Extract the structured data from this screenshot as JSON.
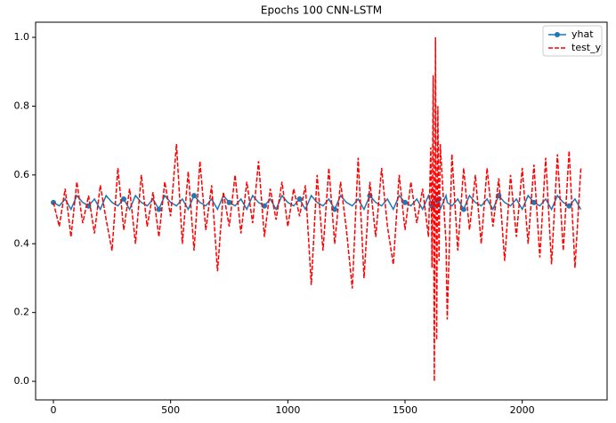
{
  "chart_data": {
    "type": "line",
    "title": "Epochs 100 CNN-LSTM",
    "x": [
      0,
      25,
      50,
      75,
      100,
      125,
      150,
      175,
      200,
      225,
      250,
      275,
      300,
      325,
      350,
      375,
      400,
      425,
      450,
      475,
      500,
      525,
      550,
      575,
      600,
      625,
      650,
      675,
      700,
      725,
      750,
      775,
      800,
      825,
      850,
      875,
      900,
      925,
      950,
      975,
      1000,
      1025,
      1050,
      1075,
      1100,
      1125,
      1150,
      1175,
      1200,
      1225,
      1250,
      1275,
      1300,
      1325,
      1350,
      1375,
      1400,
      1425,
      1450,
      1475,
      1500,
      1525,
      1550,
      1575,
      1600,
      1610,
      1615,
      1620,
      1625,
      1630,
      1635,
      1640,
      1645,
      1650,
      1675,
      1680,
      1700,
      1725,
      1750,
      1775,
      1800,
      1825,
      1850,
      1875,
      1900,
      1925,
      1950,
      1975,
      2000,
      2025,
      2050,
      2075,
      2100,
      2125,
      2150,
      2175,
      2200,
      2225,
      2250
    ],
    "series": [
      {
        "name": "yhat",
        "color": "#1f77b4",
        "style": "solid-marker",
        "values": [
          0.52,
          0.51,
          0.53,
          0.5,
          0.54,
          0.52,
          0.51,
          0.53,
          0.5,
          0.54,
          0.52,
          0.51,
          0.53,
          0.5,
          0.54,
          0.52,
          0.51,
          0.53,
          0.5,
          0.54,
          0.52,
          0.51,
          0.53,
          0.5,
          0.54,
          0.52,
          0.51,
          0.53,
          0.5,
          0.54,
          0.52,
          0.51,
          0.53,
          0.5,
          0.54,
          0.52,
          0.51,
          0.53,
          0.5,
          0.54,
          0.52,
          0.51,
          0.53,
          0.5,
          0.54,
          0.52,
          0.51,
          0.53,
          0.5,
          0.54,
          0.52,
          0.51,
          0.53,
          0.5,
          0.54,
          0.52,
          0.51,
          0.53,
          0.5,
          0.54,
          0.52,
          0.51,
          0.53,
          0.5,
          0.54,
          0.52,
          0.51,
          0.53,
          0.5,
          0.54,
          0.52,
          0.51,
          0.53,
          0.5,
          0.54,
          0.52,
          0.51,
          0.53,
          0.5,
          0.54,
          0.52,
          0.51,
          0.53,
          0.5,
          0.54,
          0.52,
          0.51,
          0.53,
          0.5,
          0.54,
          0.52,
          0.51,
          0.53,
          0.5,
          0.54,
          0.52,
          0.51,
          0.53,
          0.5
        ]
      },
      {
        "name": "test_y",
        "color": "#ff0000",
        "style": "dashed",
        "values": [
          0.52,
          0.45,
          0.56,
          0.42,
          0.58,
          0.46,
          0.54,
          0.43,
          0.57,
          0.47,
          0.38,
          0.62,
          0.44,
          0.56,
          0.4,
          0.6,
          0.45,
          0.55,
          0.42,
          0.58,
          0.48,
          0.69,
          0.4,
          0.61,
          0.38,
          0.64,
          0.44,
          0.57,
          0.32,
          0.55,
          0.45,
          0.6,
          0.43,
          0.58,
          0.46,
          0.64,
          0.42,
          0.56,
          0.47,
          0.58,
          0.45,
          0.56,
          0.48,
          0.57,
          0.28,
          0.6,
          0.38,
          0.62,
          0.4,
          0.58,
          0.44,
          0.27,
          0.65,
          0.3,
          0.58,
          0.42,
          0.62,
          0.45,
          0.34,
          0.6,
          0.44,
          0.58,
          0.46,
          0.56,
          0.42,
          0.68,
          0.33,
          0.89,
          0.0,
          1.0,
          0.12,
          0.8,
          0.35,
          0.69,
          0.4,
          0.18,
          0.66,
          0.38,
          0.62,
          0.44,
          0.6,
          0.4,
          0.62,
          0.45,
          0.59,
          0.35,
          0.6,
          0.42,
          0.62,
          0.4,
          0.63,
          0.36,
          0.65,
          0.34,
          0.66,
          0.38,
          0.67,
          0.33,
          0.62
        ]
      }
    ],
    "xlim": [
      -76,
      2362
    ],
    "ylim": [
      -0.054,
      1.044
    ],
    "xticks": [
      0,
      500,
      1000,
      1500,
      2000
    ],
    "yticks": [
      {
        "value": 0,
        "label": "0.0"
      },
      0.2,
      0.4,
      0.6,
      0.8,
      {
        "value": 1,
        "label": "1.0"
      }
    ],
    "legend": "upper right"
  }
}
